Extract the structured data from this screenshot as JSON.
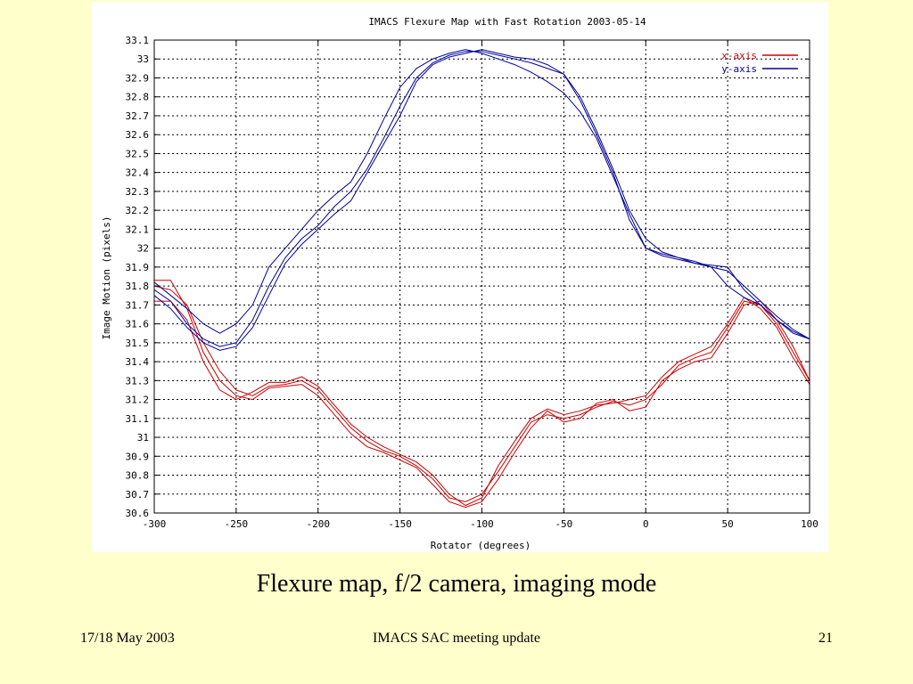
{
  "slide": {
    "caption": "Flexure map, f/2 camera, imaging mode",
    "footer_left": "17/18 May 2003",
    "footer_center": "IMACS SAC meeting update",
    "footer_right": "21"
  },
  "chart_data": {
    "type": "line",
    "title": "IMACS Flexure Map with Fast Rotation 2003-05-14",
    "xlabel": "Rotator (degrees)",
    "ylabel": "Image Motion (pixels)",
    "xlim": [
      -300,
      100
    ],
    "ylim": [
      30.6,
      33.1
    ],
    "xticks": [
      -300,
      -250,
      -200,
      -150,
      -100,
      -50,
      0,
      50,
      100
    ],
    "xtick_labels": [
      "-300",
      "-250",
      "-200",
      "-150",
      "-100",
      "-50",
      "0",
      "50",
      "100"
    ],
    "yticks": [
      30.6,
      30.7,
      30.8,
      30.9,
      31.0,
      31.1,
      31.2,
      31.3,
      31.4,
      31.5,
      31.6,
      31.7,
      31.8,
      31.9,
      32.0,
      32.1,
      32.2,
      32.3,
      32.4,
      32.5,
      32.6,
      32.7,
      32.8,
      32.9,
      33.0,
      33.1
    ],
    "ytick_labels": [
      "30.6",
      "30.7",
      "30.8",
      "30.9",
      "31",
      "31.1",
      "31.2",
      "31.3",
      "31.4",
      "31.5",
      "31.6",
      "31.7",
      "31.8",
      "31.9",
      "32",
      "32.1",
      "32.2",
      "32.3",
      "32.4",
      "32.5",
      "32.6",
      "32.7",
      "32.8",
      "32.9",
      "33",
      "33.1"
    ],
    "grid": true,
    "legend_position": "top-right",
    "series": [
      {
        "name": "x-axis",
        "color": "#cc0000",
        "traces": [
          {
            "x": [
              -300,
              -290,
              -280,
              -270,
              -260,
              -250,
              -240,
              -230,
              -220,
              -210,
              -200,
              -190,
              -180,
              -170,
              -160,
              -150,
              -140,
              -130,
              -120,
              -110,
              -100,
              -90,
              -80,
              -70,
              -60,
              -50,
              -40,
              -30,
              -20,
              -10,
              0,
              10,
              20,
              30,
              40,
              50,
              60,
              70,
              80,
              90,
              100
            ],
            "y": [
              31.8,
              31.78,
              31.7,
              31.5,
              31.35,
              31.25,
              31.22,
              31.27,
              31.28,
              31.3,
              31.25,
              31.15,
              31.05,
              30.98,
              30.93,
              30.9,
              30.85,
              30.78,
              30.68,
              30.66,
              30.7,
              30.82,
              30.95,
              31.08,
              31.12,
              31.1,
              31.12,
              31.16,
              31.19,
              31.17,
              31.2,
              31.28,
              31.38,
              31.42,
              31.45,
              31.58,
              31.72,
              31.7,
              31.6,
              31.45,
              31.3
            ]
          },
          {
            "x": [
              -300,
              -290,
              -280,
              -270,
              -260,
              -250,
              -240,
              -230,
              -220,
              -210,
              -200,
              -190,
              -180,
              -170,
              -160,
              -150,
              -140,
              -130,
              -120,
              -110,
              -100,
              -90,
              -80,
              -70,
              -60,
              -50,
              -40,
              -30,
              -20,
              -10,
              0,
              10,
              20,
              30,
              40,
              50,
              60,
              70,
              80,
              90,
              100
            ],
            "y": [
              31.83,
              31.83,
              31.68,
              31.45,
              31.3,
              31.22,
              31.2,
              31.26,
              31.27,
              31.28,
              31.22,
              31.12,
              31.02,
              30.95,
              30.92,
              30.88,
              30.84,
              30.75,
              30.66,
              30.63,
              30.66,
              30.78,
              30.92,
              31.05,
              31.14,
              31.08,
              31.1,
              31.18,
              31.2,
              31.14,
              31.16,
              31.3,
              31.36,
              31.4,
              31.42,
              31.55,
              31.7,
              31.72,
              31.62,
              31.48,
              31.3
            ]
          },
          {
            "x": [
              -300,
              -290,
              -280,
              -270,
              -260,
              -250,
              -240,
              -230,
              -220,
              -210,
              -200,
              -190,
              -180,
              -170,
              -160,
              -150,
              -140,
              -130,
              -120,
              -110,
              -100,
              -90,
              -80,
              -70,
              -60,
              -50,
              -40,
              -30,
              -20,
              -10,
              0,
              10,
              20,
              30,
              40,
              50,
              60,
              70,
              80,
              90,
              100
            ],
            "y": [
              31.72,
              31.72,
              31.62,
              31.4,
              31.25,
              31.2,
              31.24,
              31.29,
              31.29,
              31.32,
              31.27,
              31.17,
              31.07,
              31.0,
              30.95,
              30.91,
              30.87,
              30.8,
              30.7,
              30.64,
              30.68,
              30.85,
              30.98,
              31.1,
              31.15,
              31.12,
              31.14,
              31.17,
              31.18,
              31.2,
              31.22,
              31.32,
              31.4,
              31.44,
              31.48,
              31.6,
              31.74,
              31.68,
              31.58,
              31.42,
              31.28
            ]
          }
        ]
      },
      {
        "name": "y-axis",
        "color": "#000099",
        "traces": [
          {
            "x": [
              -300,
              -290,
              -280,
              -270,
              -260,
              -250,
              -240,
              -230,
              -220,
              -210,
              -200,
              -190,
              -180,
              -170,
              -160,
              -150,
              -140,
              -130,
              -120,
              -110,
              -100,
              -90,
              -80,
              -70,
              -60,
              -50,
              -40,
              -30,
              -20,
              -10,
              0,
              10,
              20,
              30,
              40,
              50,
              60,
              70,
              80,
              90,
              100
            ],
            "y": [
              31.82,
              31.75,
              31.68,
              31.6,
              31.55,
              31.6,
              31.7,
              31.9,
              32.0,
              32.1,
              32.2,
              32.28,
              32.35,
              32.5,
              32.68,
              32.85,
              32.95,
              33.0,
              33.03,
              33.05,
              33.03,
              33.0,
              32.97,
              32.93,
              32.88,
              32.82,
              32.72,
              32.58,
              32.38,
              32.18,
              32.0,
              31.96,
              31.94,
              31.92,
              31.9,
              31.8,
              31.74,
              31.7,
              31.62,
              31.55,
              31.52
            ]
          },
          {
            "x": [
              -300,
              -290,
              -280,
              -270,
              -260,
              -250,
              -240,
              -230,
              -220,
              -210,
              -200,
              -190,
              -180,
              -170,
              -160,
              -150,
              -140,
              -130,
              -120,
              -110,
              -100,
              -90,
              -80,
              -70,
              -60,
              -50,
              -40,
              -30,
              -20,
              -10,
              0,
              10,
              20,
              30,
              40,
              50,
              60,
              70,
              80,
              90,
              100
            ],
            "y": [
              31.78,
              31.72,
              31.6,
              31.52,
              31.48,
              31.5,
              31.62,
              31.8,
              31.95,
              32.05,
              32.12,
              32.22,
              32.3,
              32.42,
              32.58,
              32.75,
              32.9,
              32.98,
              33.02,
              33.04,
              33.04,
              33.02,
              33.0,
              32.98,
              32.95,
              32.92,
              32.8,
              32.62,
              32.42,
              32.2,
              32.05,
              31.98,
              31.95,
              31.93,
              31.9,
              31.88,
              31.8,
              31.72,
              31.64,
              31.57,
              31.52
            ]
          },
          {
            "x": [
              -300,
              -290,
              -280,
              -270,
              -260,
              -250,
              -240,
              -230,
              -220,
              -210,
              -200,
              -190,
              -180,
              -170,
              -160,
              -150,
              -140,
              -130,
              -120,
              -110,
              -100,
              -90,
              -80,
              -70,
              -60,
              -50,
              -40,
              -30,
              -20,
              -10,
              0,
              10,
              20,
              30,
              40,
              50,
              60,
              70,
              80,
              90,
              100
            ],
            "y": [
              31.75,
              31.68,
              31.58,
              31.5,
              31.46,
              31.48,
              31.58,
              31.75,
              31.92,
              32.02,
              32.1,
              32.18,
              32.25,
              32.4,
              32.55,
              32.7,
              32.88,
              32.97,
              33.01,
              33.03,
              33.05,
              33.03,
              33.01,
              33.0,
              32.97,
              32.92,
              32.78,
              32.6,
              32.4,
              32.15,
              32.0,
              31.97,
              31.95,
              31.92,
              31.91,
              31.9,
              31.78,
              31.7,
              31.62,
              31.56,
              31.52
            ]
          }
        ]
      }
    ]
  }
}
